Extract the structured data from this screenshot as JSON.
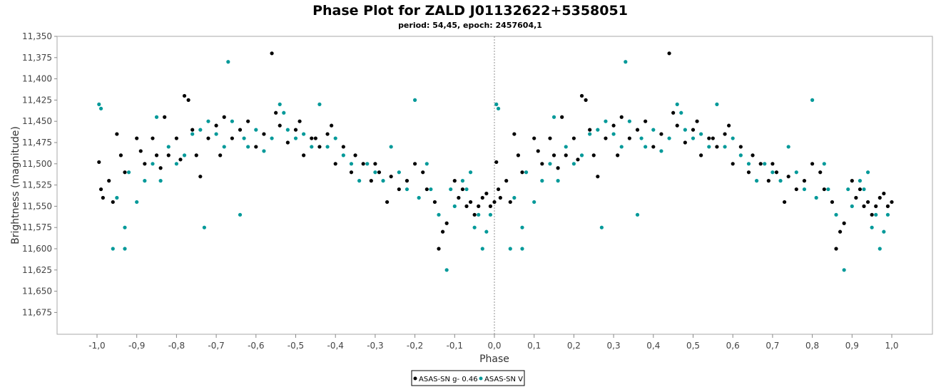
{
  "chart_data": {
    "type": "scatter",
    "title": "Phase Plot for ZALD J01132622+5358051",
    "subtitle": "period: 54,45, epoch: 2457604,1",
    "xlabel": "Phase",
    "ylabel": "Brightness (magnitude)",
    "xlim": [
      -1.1,
      1.1
    ],
    "ylim": [
      11.35,
      11.7
    ],
    "y_inverted": true,
    "x_ticks": [
      "-1,0",
      "-0,9",
      "-0,8",
      "-0,7",
      "-0,6",
      "-0,5",
      "-0,4",
      "-0,3",
      "-0,2",
      "-0,1",
      "0,0",
      "0,1",
      "0,2",
      "0,3",
      "0,4",
      "0,5",
      "0,6",
      "0,7",
      "0,8",
      "0,9",
      "1,0"
    ],
    "y_ticks": [
      "11,350",
      "11,375",
      "11,400",
      "11,425",
      "11,450",
      "11,475",
      "11,500",
      "11,525",
      "11,550",
      "11,575",
      "11,600",
      "11,625",
      "11,650",
      "11,675"
    ],
    "grid": false,
    "legend_position": "bottom-center",
    "series": [
      {
        "name": "ASAS-SN g- 0.46",
        "color": "#000000",
        "points": [
          [
            -0.995,
            11.498
          ],
          [
            -0.99,
            11.53
          ],
          [
            -0.985,
            11.54
          ],
          [
            -0.97,
            11.52
          ],
          [
            -0.96,
            11.545
          ],
          [
            -0.95,
            11.465
          ],
          [
            -0.94,
            11.49
          ],
          [
            -0.93,
            11.51
          ],
          [
            -0.9,
            11.47
          ],
          [
            -0.89,
            11.485
          ],
          [
            -0.88,
            11.5
          ],
          [
            -0.86,
            11.47
          ],
          [
            -0.85,
            11.49
          ],
          [
            -0.84,
            11.505
          ],
          [
            -0.83,
            11.445
          ],
          [
            -0.82,
            11.49
          ],
          [
            -0.8,
            11.47
          ],
          [
            -0.79,
            11.495
          ],
          [
            -0.78,
            11.42
          ],
          [
            -0.77,
            11.425
          ],
          [
            -0.76,
            11.46
          ],
          [
            -0.75,
            11.49
          ],
          [
            -0.74,
            11.515
          ],
          [
            -0.72,
            11.47
          ],
          [
            -0.7,
            11.455
          ],
          [
            -0.69,
            11.49
          ],
          [
            -0.68,
            11.445
          ],
          [
            -0.66,
            11.47
          ],
          [
            -0.64,
            11.46
          ],
          [
            -0.62,
            11.45
          ],
          [
            -0.6,
            11.48
          ],
          [
            -0.58,
            11.465
          ],
          [
            -0.56,
            11.37
          ],
          [
            -0.55,
            11.44
          ],
          [
            -0.54,
            11.455
          ],
          [
            -0.52,
            11.475
          ],
          [
            -0.5,
            11.46
          ],
          [
            -0.49,
            11.45
          ],
          [
            -0.48,
            11.49
          ],
          [
            -0.46,
            11.47
          ],
          [
            -0.45,
            11.47
          ],
          [
            -0.44,
            11.48
          ],
          [
            -0.42,
            11.465
          ],
          [
            -0.41,
            11.455
          ],
          [
            -0.4,
            11.5
          ],
          [
            -0.38,
            11.48
          ],
          [
            -0.36,
            11.51
          ],
          [
            -0.35,
            11.49
          ],
          [
            -0.33,
            11.5
          ],
          [
            -0.31,
            11.52
          ],
          [
            -0.3,
            11.5
          ],
          [
            -0.29,
            11.51
          ],
          [
            -0.27,
            11.545
          ],
          [
            -0.26,
            11.515
          ],
          [
            -0.24,
            11.53
          ],
          [
            -0.22,
            11.52
          ],
          [
            -0.2,
            11.5
          ],
          [
            -0.18,
            11.51
          ],
          [
            -0.17,
            11.53
          ],
          [
            -0.15,
            11.545
          ],
          [
            -0.14,
            11.6
          ],
          [
            -0.13,
            11.58
          ],
          [
            -0.12,
            11.57
          ],
          [
            -0.1,
            11.52
          ],
          [
            -0.09,
            11.54
          ],
          [
            -0.08,
            11.53
          ],
          [
            -0.07,
            11.55
          ],
          [
            -0.06,
            11.545
          ],
          [
            -0.05,
            11.56
          ],
          [
            -0.04,
            11.55
          ],
          [
            -0.03,
            11.54
          ],
          [
            -0.02,
            11.535
          ],
          [
            -0.01,
            11.55
          ],
          [
            0.0,
            11.545
          ],
          [
            0.005,
            11.498
          ],
          [
            0.01,
            11.53
          ],
          [
            0.015,
            11.54
          ],
          [
            0.03,
            11.52
          ],
          [
            0.04,
            11.545
          ],
          [
            0.05,
            11.465
          ],
          [
            0.06,
            11.49
          ],
          [
            0.07,
            11.51
          ],
          [
            0.1,
            11.47
          ],
          [
            0.11,
            11.485
          ],
          [
            0.12,
            11.5
          ],
          [
            0.14,
            11.47
          ],
          [
            0.15,
            11.49
          ],
          [
            0.16,
            11.505
          ],
          [
            0.17,
            11.445
          ],
          [
            0.18,
            11.49
          ],
          [
            0.2,
            11.47
          ],
          [
            0.21,
            11.495
          ],
          [
            0.22,
            11.42
          ],
          [
            0.23,
            11.425
          ],
          [
            0.24,
            11.46
          ],
          [
            0.25,
            11.49
          ],
          [
            0.26,
            11.515
          ],
          [
            0.28,
            11.47
          ],
          [
            0.3,
            11.455
          ],
          [
            0.31,
            11.49
          ],
          [
            0.32,
            11.445
          ],
          [
            0.34,
            11.47
          ],
          [
            0.36,
            11.46
          ],
          [
            0.38,
            11.45
          ],
          [
            0.4,
            11.48
          ],
          [
            0.42,
            11.465
          ],
          [
            0.44,
            11.37
          ],
          [
            0.45,
            11.44
          ],
          [
            0.46,
            11.455
          ],
          [
            0.48,
            11.475
          ],
          [
            0.5,
            11.46
          ],
          [
            0.51,
            11.45
          ],
          [
            0.52,
            11.49
          ],
          [
            0.54,
            11.47
          ],
          [
            0.55,
            11.47
          ],
          [
            0.56,
            11.48
          ],
          [
            0.58,
            11.465
          ],
          [
            0.59,
            11.455
          ],
          [
            0.6,
            11.5
          ],
          [
            0.62,
            11.48
          ],
          [
            0.64,
            11.51
          ],
          [
            0.65,
            11.49
          ],
          [
            0.67,
            11.5
          ],
          [
            0.69,
            11.52
          ],
          [
            0.7,
            11.5
          ],
          [
            0.71,
            11.51
          ],
          [
            0.73,
            11.545
          ],
          [
            0.74,
            11.515
          ],
          [
            0.76,
            11.53
          ],
          [
            0.78,
            11.52
          ],
          [
            0.8,
            11.5
          ],
          [
            0.82,
            11.51
          ],
          [
            0.83,
            11.53
          ],
          [
            0.85,
            11.545
          ],
          [
            0.86,
            11.6
          ],
          [
            0.87,
            11.58
          ],
          [
            0.88,
            11.57
          ],
          [
            0.9,
            11.52
          ],
          [
            0.91,
            11.54
          ],
          [
            0.92,
            11.53
          ],
          [
            0.93,
            11.55
          ],
          [
            0.94,
            11.545
          ],
          [
            0.95,
            11.56
          ],
          [
            0.96,
            11.55
          ],
          [
            0.97,
            11.54
          ],
          [
            0.98,
            11.535
          ],
          [
            0.99,
            11.55
          ],
          [
            1.0,
            11.545
          ]
        ]
      },
      {
        "name": "ASAS-SN V",
        "color": "#009999",
        "points": [
          [
            -0.995,
            11.43
          ],
          [
            -0.99,
            11.435
          ],
          [
            -0.96,
            11.6
          ],
          [
            -0.95,
            11.54
          ],
          [
            -0.93,
            11.6
          ],
          [
            -0.93,
            11.575
          ],
          [
            -0.92,
            11.51
          ],
          [
            -0.9,
            11.545
          ],
          [
            -0.88,
            11.52
          ],
          [
            -0.86,
            11.5
          ],
          [
            -0.85,
            11.445
          ],
          [
            -0.84,
            11.52
          ],
          [
            -0.82,
            11.48
          ],
          [
            -0.8,
            11.5
          ],
          [
            -0.78,
            11.49
          ],
          [
            -0.76,
            11.465
          ],
          [
            -0.74,
            11.46
          ],
          [
            -0.73,
            11.575
          ],
          [
            -0.72,
            11.45
          ],
          [
            -0.7,
            11.465
          ],
          [
            -0.68,
            11.48
          ],
          [
            -0.67,
            11.38
          ],
          [
            -0.66,
            11.45
          ],
          [
            -0.64,
            11.56
          ],
          [
            -0.63,
            11.47
          ],
          [
            -0.62,
            11.48
          ],
          [
            -0.6,
            11.46
          ],
          [
            -0.58,
            11.485
          ],
          [
            -0.56,
            11.47
          ],
          [
            -0.54,
            11.43
          ],
          [
            -0.53,
            11.44
          ],
          [
            -0.52,
            11.46
          ],
          [
            -0.5,
            11.47
          ],
          [
            -0.48,
            11.465
          ],
          [
            -0.46,
            11.48
          ],
          [
            -0.44,
            11.43
          ],
          [
            -0.42,
            11.48
          ],
          [
            -0.4,
            11.47
          ],
          [
            -0.38,
            11.49
          ],
          [
            -0.36,
            11.5
          ],
          [
            -0.34,
            11.52
          ],
          [
            -0.32,
            11.5
          ],
          [
            -0.3,
            11.51
          ],
          [
            -0.28,
            11.52
          ],
          [
            -0.26,
            11.48
          ],
          [
            -0.24,
            11.51
          ],
          [
            -0.22,
            11.53
          ],
          [
            -0.2,
            11.425
          ],
          [
            -0.19,
            11.54
          ],
          [
            -0.17,
            11.5
          ],
          [
            -0.16,
            11.53
          ],
          [
            -0.14,
            11.56
          ],
          [
            -0.12,
            11.625
          ],
          [
            -0.11,
            11.53
          ],
          [
            -0.1,
            11.55
          ],
          [
            -0.08,
            11.52
          ],
          [
            -0.07,
            11.53
          ],
          [
            -0.06,
            11.51
          ],
          [
            -0.05,
            11.575
          ],
          [
            -0.04,
            11.56
          ],
          [
            -0.03,
            11.6
          ],
          [
            -0.02,
            11.58
          ],
          [
            -0.01,
            11.56
          ],
          [
            0.005,
            11.43
          ],
          [
            0.01,
            11.435
          ],
          [
            0.04,
            11.6
          ],
          [
            0.05,
            11.54
          ],
          [
            0.07,
            11.6
          ],
          [
            0.07,
            11.575
          ],
          [
            0.08,
            11.51
          ],
          [
            0.1,
            11.545
          ],
          [
            0.12,
            11.52
          ],
          [
            0.14,
            11.5
          ],
          [
            0.15,
            11.445
          ],
          [
            0.16,
            11.52
          ],
          [
            0.18,
            11.48
          ],
          [
            0.2,
            11.5
          ],
          [
            0.22,
            11.49
          ],
          [
            0.24,
            11.465
          ],
          [
            0.26,
            11.46
          ],
          [
            0.27,
            11.575
          ],
          [
            0.28,
            11.45
          ],
          [
            0.3,
            11.465
          ],
          [
            0.32,
            11.48
          ],
          [
            0.33,
            11.38
          ],
          [
            0.34,
            11.45
          ],
          [
            0.36,
            11.56
          ],
          [
            0.37,
            11.47
          ],
          [
            0.38,
            11.48
          ],
          [
            0.4,
            11.46
          ],
          [
            0.42,
            11.485
          ],
          [
            0.44,
            11.47
          ],
          [
            0.46,
            11.43
          ],
          [
            0.47,
            11.44
          ],
          [
            0.48,
            11.46
          ],
          [
            0.5,
            11.47
          ],
          [
            0.52,
            11.465
          ],
          [
            0.54,
            11.48
          ],
          [
            0.56,
            11.43
          ],
          [
            0.58,
            11.48
          ],
          [
            0.6,
            11.47
          ],
          [
            0.62,
            11.49
          ],
          [
            0.64,
            11.5
          ],
          [
            0.66,
            11.52
          ],
          [
            0.68,
            11.5
          ],
          [
            0.7,
            11.51
          ],
          [
            0.72,
            11.52
          ],
          [
            0.74,
            11.48
          ],
          [
            0.76,
            11.51
          ],
          [
            0.78,
            11.53
          ],
          [
            0.8,
            11.425
          ],
          [
            0.81,
            11.54
          ],
          [
            0.83,
            11.5
          ],
          [
            0.84,
            11.53
          ],
          [
            0.86,
            11.56
          ],
          [
            0.88,
            11.625
          ],
          [
            0.89,
            11.53
          ],
          [
            0.9,
            11.55
          ],
          [
            0.92,
            11.52
          ],
          [
            0.93,
            11.53
          ],
          [
            0.94,
            11.51
          ],
          [
            0.95,
            11.575
          ],
          [
            0.96,
            11.56
          ],
          [
            0.97,
            11.6
          ],
          [
            0.98,
            11.58
          ],
          [
            0.99,
            11.56
          ]
        ]
      }
    ]
  }
}
